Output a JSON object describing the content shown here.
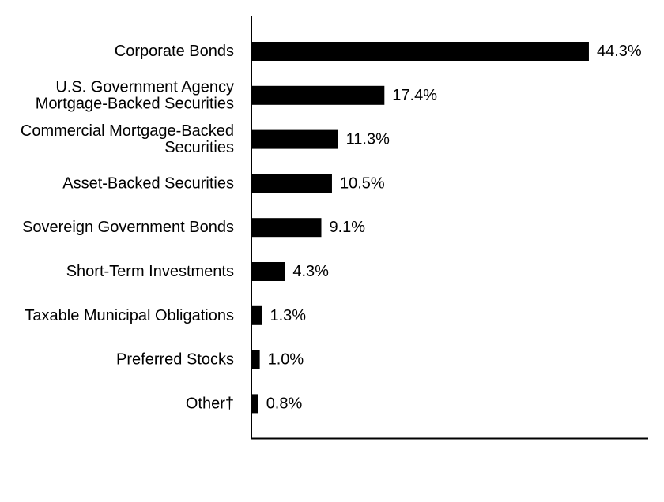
{
  "chart_data": {
    "type": "bar",
    "orientation": "horizontal",
    "title": "",
    "xlabel": "",
    "ylabel": "",
    "grid": false,
    "legend": "none",
    "xlim": [
      0,
      52
    ],
    "bar_color": "#000000",
    "categories": [
      [
        "Corporate Bonds"
      ],
      [
        "U.S. Government Agency",
        "Mortgage-Backed Securities"
      ],
      [
        "Commercial Mortgage-Backed",
        "Securities"
      ],
      [
        "Asset-Backed Securities"
      ],
      [
        "Sovereign Government Bonds"
      ],
      [
        "Short-Term Investments"
      ],
      [
        "Taxable Municipal Obligations"
      ],
      [
        "Preferred Stocks"
      ],
      [
        "Other†"
      ]
    ],
    "values": [
      44.3,
      17.4,
      11.3,
      10.5,
      9.1,
      4.3,
      1.3,
      1.0,
      0.8
    ],
    "value_labels": [
      "44.3%",
      "17.4%",
      "11.3%",
      "10.5%",
      "9.1%",
      "4.3%",
      "1.3%",
      "1.0%",
      "0.8%"
    ]
  }
}
